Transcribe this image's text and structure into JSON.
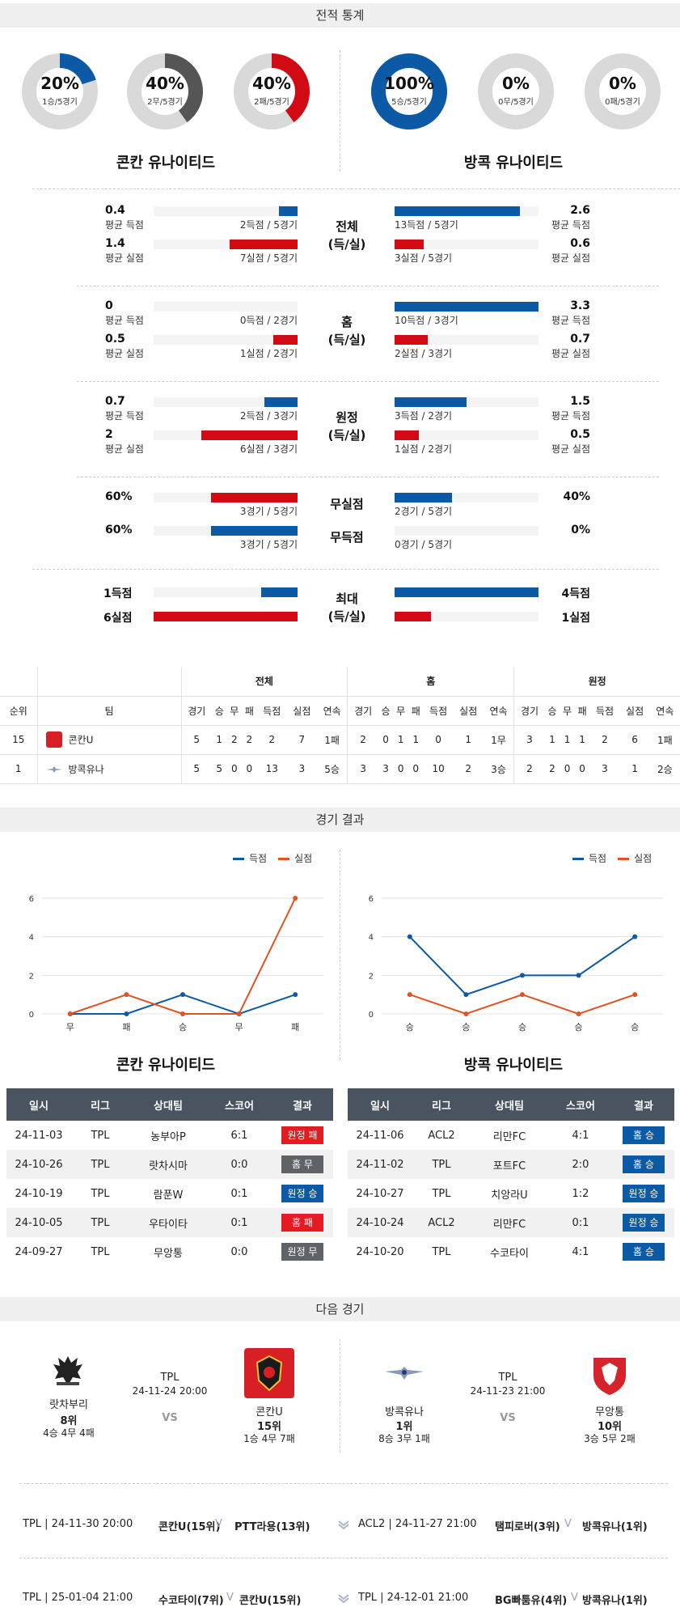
{
  "sections": {
    "stats": "전적 통계",
    "results": "경기 결과",
    "next": "다음 경기"
  },
  "rings": [
    {
      "pct": "20%",
      "sub": "1승/5경기",
      "fraction": 0.2,
      "color": "#0c5aa6"
    },
    {
      "pct": "40%",
      "sub": "2무/5경기",
      "fraction": 0.4,
      "color": "#555555"
    },
    {
      "pct": "40%",
      "sub": "2패/5경기",
      "fraction": 0.4,
      "color": "#d10a14"
    },
    {
      "pct": "100%",
      "sub": "5승/5경기",
      "fraction": 1.0,
      "color": "#0c5aa6"
    },
    {
      "pct": "0%",
      "sub": "0무/5경기",
      "fraction": 0,
      "color": "#555555"
    },
    {
      "pct": "0%",
      "sub": "0패/5경기",
      "fraction": 0,
      "color": "#d10a14"
    }
  ],
  "teams": {
    "left": "콘칸 유나이티드",
    "right": "방콕 유나이티드"
  },
  "stat_blocks": [
    {
      "cat": "전체",
      "cat2": "(득/실)",
      "rows": [
        {
          "lv": "0.4",
          "lsub": "평균 득점",
          "lcount": "2득점 / 5경기",
          "lfrac": 0.13,
          "rv": "2.6",
          "rsub": "평균 득점",
          "rcount": "13득점 / 5경기",
          "rfrac": 0.87,
          "color": "blue"
        },
        {
          "lv": "1.4",
          "lsub": "평균 실점",
          "lcount": "7실점 / 5경기",
          "lfrac": 0.47,
          "rv": "0.6",
          "rsub": "평균 실점",
          "rcount": "3실점 / 5경기",
          "rfrac": 0.2,
          "color": "red"
        }
      ]
    },
    {
      "cat": "홈",
      "cat2": "(득/실)",
      "rows": [
        {
          "lv": "0",
          "lsub": "평균 득점",
          "lcount": "0득점 / 2경기",
          "lfrac": 0,
          "rv": "3.3",
          "rsub": "평균 득점",
          "rcount": "10득점 / 3경기",
          "rfrac": 1.0,
          "color": "blue"
        },
        {
          "lv": "0.5",
          "lsub": "평균 실점",
          "lcount": "1실점 / 2경기",
          "lfrac": 0.17,
          "rv": "0.7",
          "rsub": "평균 실점",
          "rcount": "2실점 / 3경기",
          "rfrac": 0.23,
          "color": "red"
        }
      ]
    },
    {
      "cat": "원정",
      "cat2": "(득/실)",
      "rows": [
        {
          "lv": "0.7",
          "lsub": "평균 득점",
          "lcount": "2득점 / 3경기",
          "lfrac": 0.23,
          "rv": "1.5",
          "rsub": "평균 득점",
          "rcount": "3득점 / 2경기",
          "rfrac": 0.5,
          "color": "blue"
        },
        {
          "lv": "2",
          "lsub": "평균 실점",
          "lcount": "6실점 / 3경기",
          "lfrac": 0.67,
          "rv": "0.5",
          "rsub": "평균 실점",
          "rcount": "1실점 / 2경기",
          "rfrac": 0.17,
          "color": "red"
        }
      ]
    }
  ],
  "clean": [
    {
      "cat": "무실점",
      "lv": "60%",
      "lcount": "3경기 / 5경기",
      "lfrac": 0.6,
      "rv": "40%",
      "rcount": "2경기 / 5경기",
      "rfrac": 0.4
    },
    {
      "cat": "무득점",
      "lv": "60%",
      "lcount": "3경기 / 5경기",
      "lfrac": 0.6,
      "rv": "0%",
      "rcount": "0경기 / 5경기",
      "rfrac": 0
    }
  ],
  "max": {
    "cat": "최대",
    "cat2": "(득/실)",
    "rows": [
      {
        "lv": "1득점",
        "lfrac": 0.25,
        "rv": "4득점",
        "rfrac": 1.0,
        "color": "blue"
      },
      {
        "lv": "6실점",
        "lfrac": 1.0,
        "rv": "1실점",
        "rfrac": 0.25,
        "color": "red"
      }
    ]
  },
  "standings": {
    "groups": [
      "전체",
      "홈",
      "원정"
    ],
    "head": [
      "순위",
      "팀"
    ],
    "cols": [
      "경기",
      "승",
      "무",
      "패",
      "득점",
      "실점",
      "연속"
    ],
    "rows": [
      {
        "rank": "15",
        "team": "콘칸U",
        "all": [
          "5",
          "1",
          "2",
          "2",
          "2",
          "7",
          "1패"
        ],
        "home": [
          "2",
          "0",
          "1",
          "1",
          "0",
          "1",
          "1무"
        ],
        "away": [
          "3",
          "1",
          "1",
          "1",
          "2",
          "6",
          "1패"
        ]
      },
      {
        "rank": "1",
        "team": "방콕유나",
        "all": [
          "5",
          "5",
          "0",
          "0",
          "13",
          "3",
          "5승"
        ],
        "home": [
          "3",
          "3",
          "0",
          "0",
          "10",
          "2",
          "3승"
        ],
        "away": [
          "2",
          "2",
          "0",
          "0",
          "3",
          "1",
          "2승"
        ]
      }
    ]
  },
  "chart_data": [
    {
      "type": "line",
      "categories": [
        "무",
        "패",
        "승",
        "무",
        "패"
      ],
      "ylim": [
        0,
        6
      ],
      "yticks": [
        "0",
        "2",
        "4",
        "6"
      ],
      "series": [
        {
          "name": "득점",
          "values": [
            0,
            0,
            1,
            0,
            1
          ],
          "color": "#0c5aa6"
        },
        {
          "name": "실점",
          "values": [
            0,
            1,
            0,
            0,
            6
          ],
          "color": "#e2531f"
        }
      ],
      "legend": "top-right",
      "grid": true
    },
    {
      "type": "line",
      "categories": [
        "승",
        "승",
        "승",
        "승",
        "승"
      ],
      "ylim": [
        0,
        6
      ],
      "yticks": [
        "0",
        "2",
        "4",
        "6"
      ],
      "series": [
        {
          "name": "득점",
          "values": [
            4,
            1,
            2,
            2,
            4
          ],
          "color": "#0c5aa6"
        },
        {
          "name": "실점",
          "values": [
            1,
            0,
            1,
            0,
            1
          ],
          "color": "#e2531f"
        }
      ],
      "legend": "top-right",
      "grid": true
    }
  ],
  "results_head": [
    "일시",
    "리그",
    "상대팀",
    "스코어",
    "결과"
  ],
  "results_left": [
    [
      "24-11-03",
      "TPL",
      "농부아P",
      "6:1",
      "원정 패",
      "red"
    ],
    [
      "24-10-26",
      "TPL",
      "랏차시마",
      "0:0",
      "홈 무",
      "gray"
    ],
    [
      "24-10-19",
      "TPL",
      "람푼W",
      "0:1",
      "원정 승",
      "blue"
    ],
    [
      "24-10-05",
      "TPL",
      "우타이타",
      "0:1",
      "홈 패",
      "red"
    ],
    [
      "24-09-27",
      "TPL",
      "무앙통",
      "0:0",
      "원정 무",
      "gray"
    ]
  ],
  "results_right": [
    [
      "24-11-06",
      "ACL2",
      "리만FC",
      "4:1",
      "홈 승",
      "blue"
    ],
    [
      "24-11-02",
      "TPL",
      "포트FC",
      "2:0",
      "홈 승",
      "blue"
    ],
    [
      "24-10-27",
      "TPL",
      "치앙라U",
      "1:2",
      "원정 승",
      "blue"
    ],
    [
      "24-10-24",
      "ACL2",
      "리만FC",
      "0:1",
      "원정 승",
      "blue"
    ],
    [
      "24-10-20",
      "TPL",
      "수코타이",
      "4:1",
      "홈 승",
      "blue"
    ]
  ],
  "next": {
    "left": {
      "league": "TPL",
      "date": "24-11-24 20:00",
      "vs": "VS",
      "home": {
        "name": "랏차부리",
        "rank": "8위",
        "rec": "4승 4무 4패"
      },
      "away": {
        "name": "콘칸U",
        "rank": "15위",
        "rec": "1승 4무 7패"
      }
    },
    "right": {
      "league": "TPL",
      "date": "24-11-23 21:00",
      "vs": "VS",
      "home": {
        "name": "방콕유나",
        "rank": "1위",
        "rec": "8승 3무 1패"
      },
      "away": {
        "name": "무앙통",
        "rank": "10위",
        "rec": "3승 5무 2패"
      }
    }
  },
  "upcoming": [
    {
      "l_info": "TPL | 24-11-30 20:00",
      "l_home": "콘칸U(15위)",
      "l_away": "PTT라용(13위)",
      "r_info": "ACL2 | 24-11-27 21:00",
      "r_home": "탬피로버(3위)",
      "r_away": "방콕유나(1위)"
    },
    {
      "l_info": "TPL | 25-01-04 21:00",
      "l_home": "수코타이(7위)",
      "l_away": "콘칸U(15위)",
      "r_info": "TPL | 24-12-01 21:00",
      "r_home": "BG빠툼유(4위)",
      "r_away": "방콕유나(1위)"
    }
  ],
  "vs_mark": "V"
}
